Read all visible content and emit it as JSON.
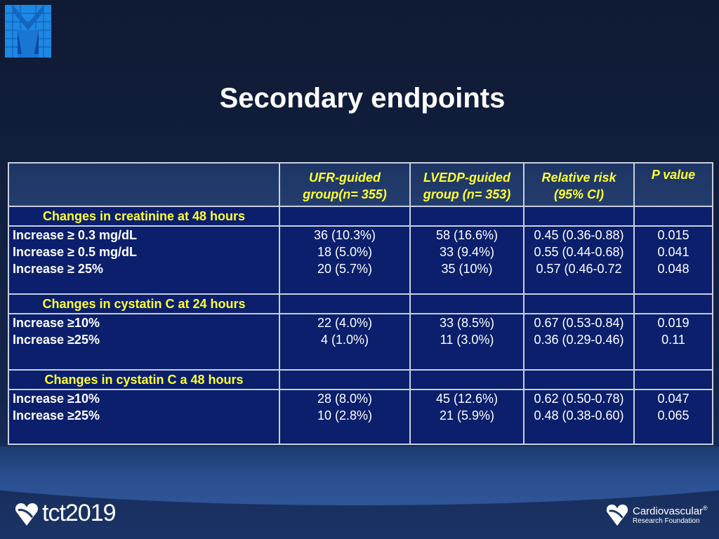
{
  "title": "Secondary endpoints",
  "table": {
    "headers": [
      "",
      "UFR-guided group(n= 355)",
      "LVEDP-guided group (n= 353)",
      "Relative risk (95% CI)",
      "P value"
    ],
    "header_lines": [
      [
        "UFR-guided",
        "group(n= 355)"
      ],
      [
        "LVEDP-guided",
        "group (n= 353)"
      ],
      [
        "Relative risk",
        "(95% CI)"
      ],
      [
        "P value"
      ]
    ],
    "sections": [
      {
        "title": "Changes in creatinine at 48 hours",
        "rows": [
          {
            "label": "Increase ≥ 0.3 mg/dL",
            "ufr": "36 (10.3%)",
            "lvedp": "58 (16.6%)",
            "rr": "0.45 (0.36-0.88)",
            "p": "0.015"
          },
          {
            "label": "Increase ≥ 0.5 mg/dL",
            "ufr": "18 (5.0%)",
            "lvedp": "33 (9.4%)",
            "rr": "0.55 (0.44-0.68)",
            "p": "0.041"
          },
          {
            "label": "Increase ≥ 25%",
            "ufr": "20 (5.7%)",
            "lvedp": "35 (10%)",
            "rr": "0.57 (0.46-0.72",
            "p": "0.048"
          }
        ]
      },
      {
        "title": "Changes in cystatin C at 24 hours",
        "rows": [
          {
            "label": "Increase ≥10%",
            "ufr": "22 (4.0%)",
            "lvedp": "33 (8.5%)",
            "rr": "0.67 (0.53-0.84)",
            "p": "0.019"
          },
          {
            "label": "Increase ≥25%",
            "ufr": "4 (1.0%)",
            "lvedp": "11 (3.0%)",
            "rr": "0.36 (0.29-0.46)",
            "p": "0.11"
          }
        ]
      },
      {
        "title": "Changes in cystatin C a 48 hours",
        "rows": [
          {
            "label": "Increase ≥10%",
            "ufr": "28 (8.0%)",
            "lvedp": "45 (12.6%)",
            "rr": "0.62 (0.50-0.78)",
            "p": "0.047"
          },
          {
            "label": "Increase ≥25%",
            "ufr": "10 (2.8%)",
            "lvedp": "21 (5.9%)",
            "rr": "0.48 (0.38-0.60)",
            "p": "0.065"
          }
        ]
      }
    ]
  },
  "footer": {
    "left_logo": "tct2019",
    "right_logo_line1": "Cardiovascular",
    "right_logo_line2": "Research Foundation",
    "registered": "®"
  },
  "colors": {
    "header_text": "#ffff33",
    "cell_bg": "#0b1f6c",
    "logo_blue": "#1e88e5"
  }
}
